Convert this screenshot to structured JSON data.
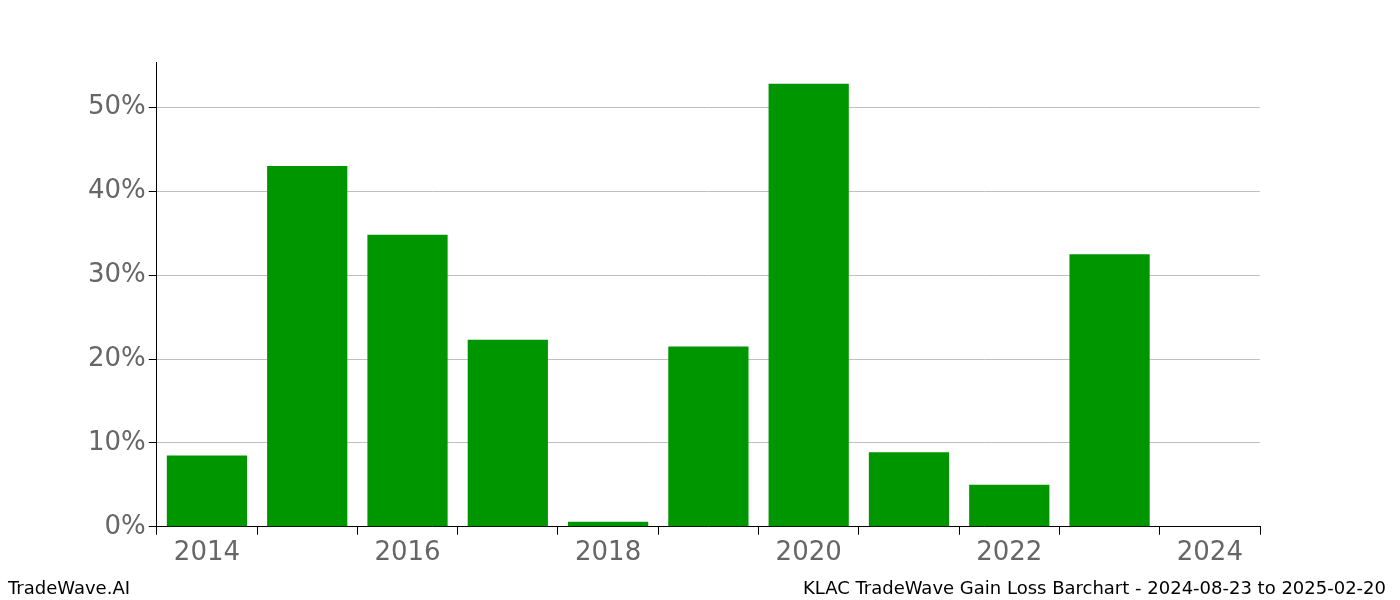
{
  "chart_data": {
    "type": "bar",
    "title": "KLAC TradeWave Gain Loss Barchart - 2024-08-23 to 2025-02-20",
    "source": "TradeWave.AI",
    "categories": [
      "2014",
      null,
      "2016",
      null,
      "2018",
      null,
      "2020",
      null,
      "2022",
      null,
      "2024"
    ],
    "values": [
      8.5,
      43.0,
      34.8,
      22.3,
      0.6,
      21.5,
      52.8,
      8.9,
      5.0,
      32.5,
      null
    ],
    "color": "#009600",
    "ylim": [
      0,
      55.4
    ],
    "yticks": [
      {
        "value": 0,
        "label": "0%"
      },
      {
        "value": 10,
        "label": "10%"
      },
      {
        "value": 20,
        "label": "20%"
      },
      {
        "value": 30,
        "label": "30%"
      },
      {
        "value": 40,
        "label": "40%"
      },
      {
        "value": 50,
        "label": "50%"
      }
    ],
    "grid": true
  }
}
